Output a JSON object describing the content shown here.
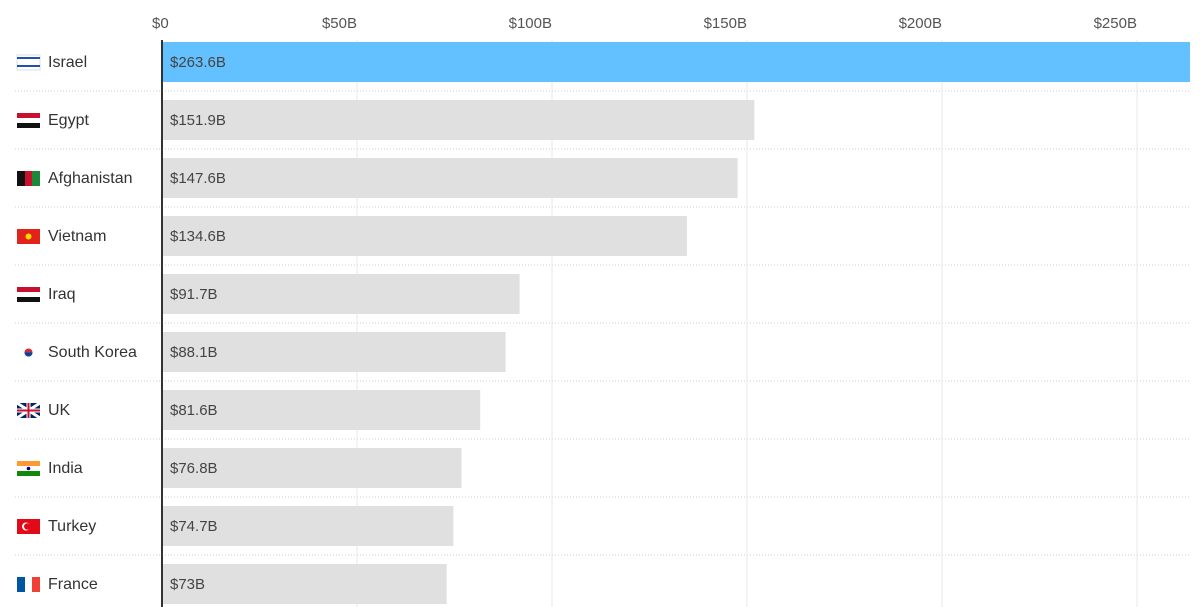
{
  "chart_data": {
    "type": "bar",
    "orientation": "horizontal",
    "categories": [
      "Israel",
      "Egypt",
      "Afghanistan",
      "Vietnam",
      "Iraq",
      "South Korea",
      "UK",
      "India",
      "Turkey",
      "France"
    ],
    "values": [
      263.6,
      151.9,
      147.6,
      134.6,
      91.7,
      88.1,
      81.6,
      76.8,
      74.7,
      73
    ],
    "value_labels": [
      "$263.6B",
      "$151.9B",
      "$147.6B",
      "$134.6B",
      "$91.7B",
      "$88.1B",
      "$81.6B",
      "$76.8B",
      "$74.7B",
      "$73B"
    ],
    "colors": [
      "#64c1ff",
      "#e0e0e0",
      "#e0e0e0",
      "#e0e0e0",
      "#e0e0e0",
      "#e0e0e0",
      "#e0e0e0",
      "#e0e0e0",
      "#e0e0e0",
      "#e0e0e0"
    ],
    "xlim": [
      0,
      263.6
    ],
    "xticks": [
      {
        "value": 0,
        "label": "$0"
      },
      {
        "value": 50,
        "label": "$50B"
      },
      {
        "value": 100,
        "label": "$100B"
      },
      {
        "value": 150,
        "label": "$150B"
      },
      {
        "value": 200,
        "label": "$200B"
      },
      {
        "value": 250,
        "label": "$250B"
      }
    ],
    "grid": true
  }
}
